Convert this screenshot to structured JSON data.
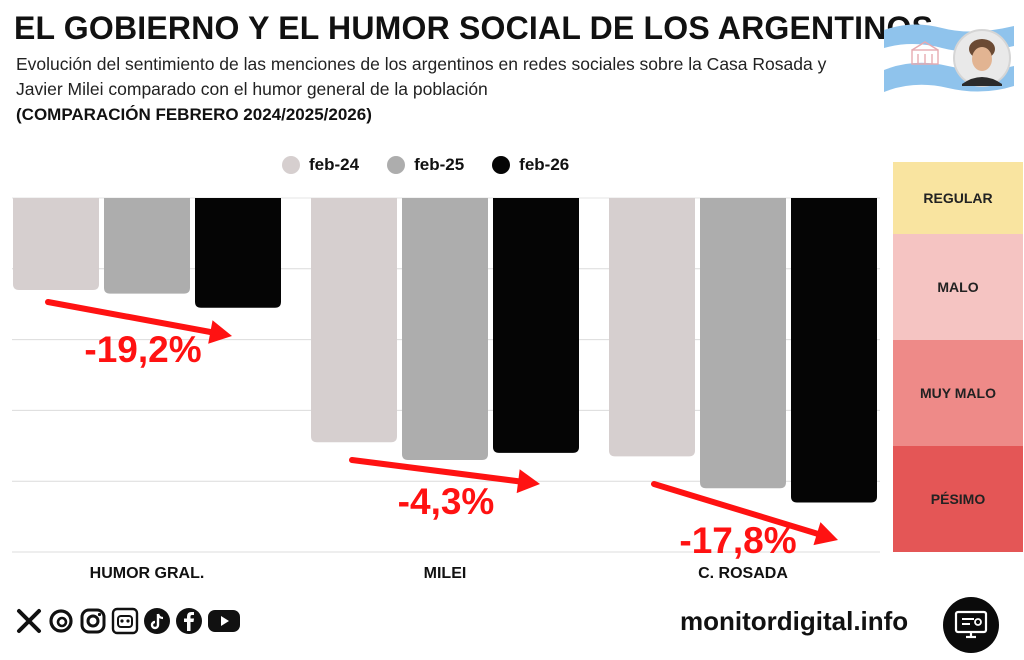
{
  "header": {
    "title": "EL GOBIERNO Y EL HUMOR SOCIAL DE LOS ARGENTINOS",
    "subtitle": "Evolución del sentimiento de las menciones de los argentinos en redes sociales sobre la Casa Rosada y Javier Milei comparado con el humor general de la población",
    "comparison": "(COMPARACIÓN FEBRERO 2024/2025/2026)"
  },
  "scale": {
    "bands": [
      {
        "label": "REGULAR",
        "color": "#f9e4a0"
      },
      {
        "label": "MALO",
        "color": "#f5c4c2"
      },
      {
        "label": "MUY MALO",
        "color": "#ee8a88"
      },
      {
        "label": "PÉSIMO",
        "color": "#e45656"
      }
    ]
  },
  "chart_data": {
    "type": "bar",
    "categories": [
      "HUMOR GRAL.",
      "MILEI",
      "C. ROSADA"
    ],
    "series": [
      {
        "name": "feb-24",
        "color": "#d6cfcf",
        "values": [
          -26,
          -69,
          -73
        ]
      },
      {
        "name": "feb-25",
        "color": "#adadad",
        "values": [
          -27,
          -74,
          -82
        ]
      },
      {
        "name": "feb-26",
        "color": "#050505",
        "values": [
          -31,
          -72,
          -86
        ]
      }
    ],
    "ylim": [
      -100,
      0
    ],
    "grid": true,
    "legend_position": "top-center",
    "annotations": [
      {
        "category": "HUMOR GRAL.",
        "text": "-19,2%",
        "color": "#ff1212"
      },
      {
        "category": "MILEI",
        "text": "-4,3%",
        "color": "#ff1212"
      },
      {
        "category": "C. ROSADA",
        "text": "-17,8%",
        "color": "#ff1212"
      }
    ]
  },
  "footer": {
    "social_icons": [
      "x-icon",
      "threads-icon",
      "instagram-icon",
      "bot-icon",
      "tiktok-icon",
      "facebook-icon",
      "youtube-icon"
    ],
    "website": "monitordigital.info"
  }
}
